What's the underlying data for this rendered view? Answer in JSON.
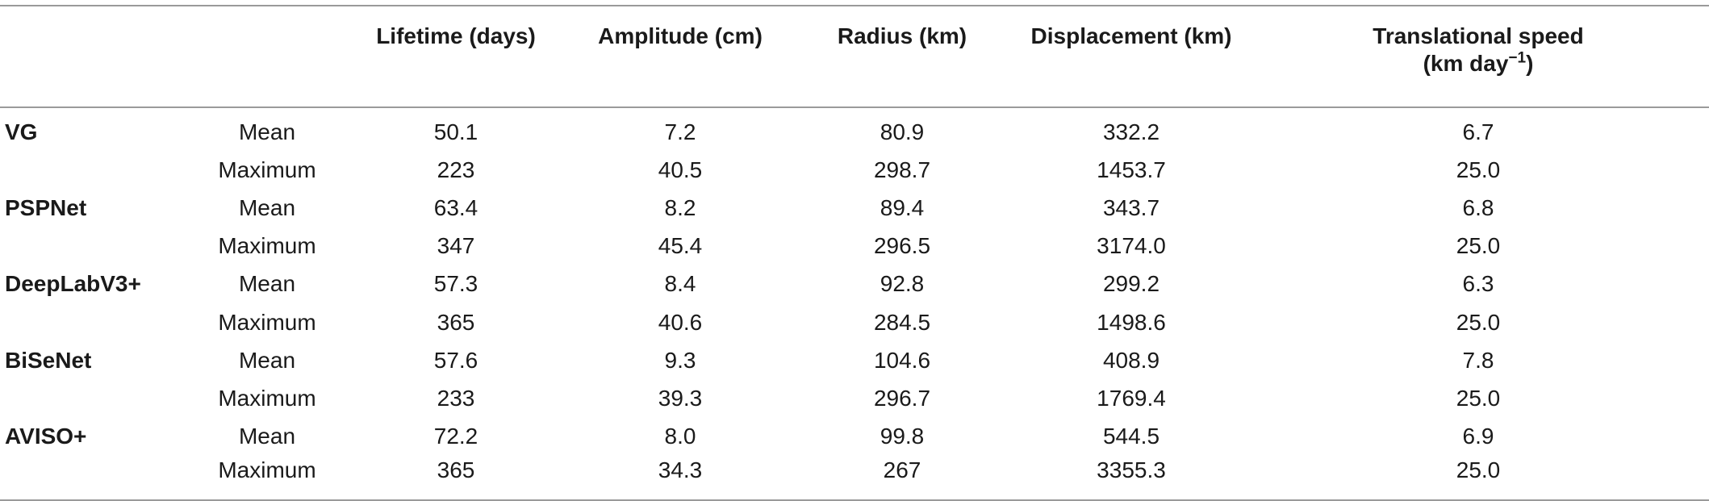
{
  "header": {
    "columns": [
      {
        "label": "Lifetime (days)"
      },
      {
        "label": "Amplitude (cm)"
      },
      {
        "label": "Radius (km)"
      },
      {
        "label": "Displacement (km)"
      },
      {
        "label_line1": "Translational speed",
        "label_line2_pre": "(km day",
        "label_line2_sup": "−1",
        "label_line2_post": ")"
      }
    ]
  },
  "rows": [
    {
      "model": "VG",
      "stat": "Mean",
      "values": [
        "50.1",
        "7.2",
        "80.9",
        "332.2",
        "6.7"
      ]
    },
    {
      "model": "",
      "stat": "Maximum",
      "values": [
        "223",
        "40.5",
        "298.7",
        "1453.7",
        "25.0"
      ]
    },
    {
      "model": "PSPNet",
      "stat": "Mean",
      "values": [
        "63.4",
        "8.2",
        "89.4",
        "343.7",
        "6.8"
      ]
    },
    {
      "model": "",
      "stat": "Maximum",
      "values": [
        "347",
        "45.4",
        "296.5",
        "3174.0",
        "25.0"
      ]
    },
    {
      "model": "DeepLabV3+",
      "stat": "Mean",
      "values": [
        "57.3",
        "8.4",
        "92.8",
        "299.2",
        "6.3"
      ]
    },
    {
      "model": "",
      "stat": "Maximum",
      "values": [
        "365",
        "40.6",
        "284.5",
        "1498.6",
        "25.0"
      ]
    },
    {
      "model": "BiSeNet",
      "stat": "Mean",
      "values": [
        "57.6",
        "9.3",
        "104.6",
        "408.9",
        "7.8"
      ]
    },
    {
      "model": "",
      "stat": "Maximum",
      "values": [
        "233",
        "39.3",
        "296.7",
        "1769.4",
        "25.0"
      ]
    },
    {
      "model": "AVISO+",
      "stat": "Mean",
      "values": [
        "72.2",
        "8.0",
        "99.8",
        "544.5",
        "6.9"
      ]
    },
    {
      "model": "",
      "stat": "Maximum",
      "values": [
        "365",
        "34.3",
        "267",
        "3355.3",
        "25.0"
      ]
    }
  ]
}
